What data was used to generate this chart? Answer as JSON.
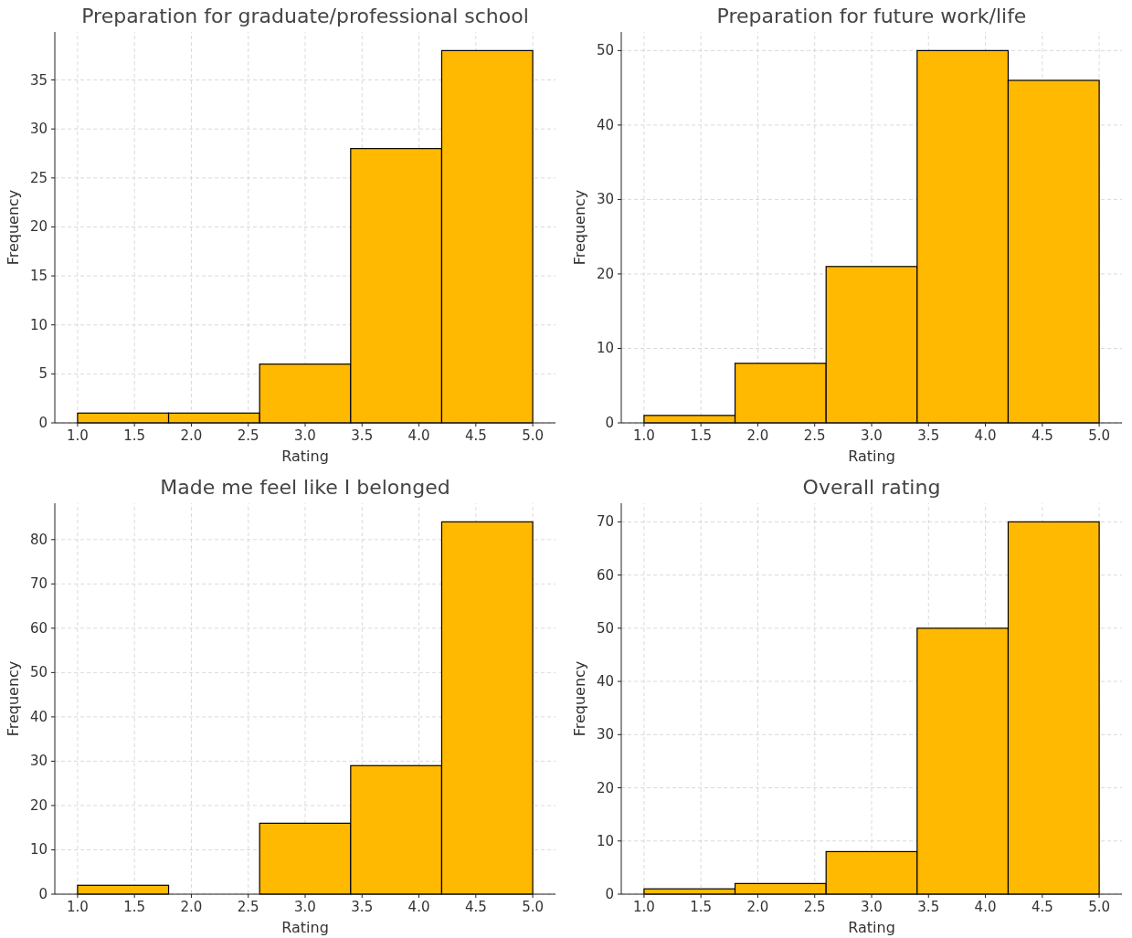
{
  "chart_data": [
    {
      "type": "histogram",
      "title": "Preparation for graduate/professional school",
      "xlabel": "Rating",
      "ylabel": "Frequency",
      "bins": [
        1.0,
        1.8,
        2.6,
        3.4,
        4.2,
        5.0
      ],
      "values": [
        1,
        1,
        6,
        28,
        38
      ],
      "color": "#ffb900",
      "xlim": [
        0.8,
        5.2
      ],
      "xticks": [
        {
          "value": 1,
          "label": "1.0"
        },
        {
          "value": 1.5,
          "label": "1.5"
        },
        {
          "value": 2,
          "label": "2.0"
        },
        {
          "value": 2.5,
          "label": "2.5"
        },
        {
          "value": 3,
          "label": "3.0"
        },
        {
          "value": 3.5,
          "label": "3.5"
        },
        {
          "value": 4,
          "label": "4.0"
        },
        {
          "value": 4.5,
          "label": "4.5"
        },
        {
          "value": 5,
          "label": "5.0"
        }
      ],
      "ylim": [
        0,
        39.9
      ],
      "yticks": [
        0,
        5,
        10,
        15,
        20,
        25,
        30,
        35
      ],
      "grid": true
    },
    {
      "type": "histogram",
      "title": "Preparation for future work/life",
      "xlabel": "Rating",
      "ylabel": "Frequency",
      "bins": [
        1.0,
        1.8,
        2.6,
        3.4,
        4.2,
        5.0
      ],
      "values": [
        1,
        8,
        21,
        50,
        46
      ],
      "color": "#ffb900",
      "xlim": [
        0.8,
        5.2
      ],
      "xticks": [
        {
          "value": 1,
          "label": "1.0"
        },
        {
          "value": 1.5,
          "label": "1.5"
        },
        {
          "value": 2,
          "label": "2.0"
        },
        {
          "value": 2.5,
          "label": "2.5"
        },
        {
          "value": 3,
          "label": "3.0"
        },
        {
          "value": 3.5,
          "label": "3.5"
        },
        {
          "value": 4,
          "label": "4.0"
        },
        {
          "value": 4.5,
          "label": "4.5"
        },
        {
          "value": 5,
          "label": "5.0"
        }
      ],
      "ylim": [
        0,
        52.5
      ],
      "yticks": [
        0,
        10,
        20,
        30,
        40,
        50
      ],
      "grid": true
    },
    {
      "type": "histogram",
      "title": "Made me feel like I belonged",
      "xlabel": "Rating",
      "ylabel": "Frequency",
      "bins": [
        1.0,
        1.8,
        2.6,
        3.4,
        4.2,
        5.0
      ],
      "values": [
        2,
        0,
        16,
        29,
        84
      ],
      "color": "#ffb900",
      "xlim": [
        0.8,
        5.2
      ],
      "xticks": [
        {
          "value": 1,
          "label": "1.0"
        },
        {
          "value": 1.5,
          "label": "1.5"
        },
        {
          "value": 2,
          "label": "2.0"
        },
        {
          "value": 2.5,
          "label": "2.5"
        },
        {
          "value": 3,
          "label": "3.0"
        },
        {
          "value": 3.5,
          "label": "3.5"
        },
        {
          "value": 4,
          "label": "4.0"
        },
        {
          "value": 4.5,
          "label": "4.5"
        },
        {
          "value": 5,
          "label": "5.0"
        }
      ],
      "ylim": [
        0,
        88.2
      ],
      "yticks": [
        0,
        10,
        20,
        30,
        40,
        50,
        60,
        70,
        80
      ],
      "grid": true
    },
    {
      "type": "histogram",
      "title": "Overall rating",
      "xlabel": "Rating",
      "ylabel": "Frequency",
      "bins": [
        1.0,
        1.8,
        2.6,
        3.4,
        4.2,
        5.0
      ],
      "values": [
        1,
        2,
        8,
        50,
        70
      ],
      "color": "#ffb900",
      "xlim": [
        0.8,
        5.2
      ],
      "xticks": [
        {
          "value": 1,
          "label": "1.0"
        },
        {
          "value": 1.5,
          "label": "1.5"
        },
        {
          "value": 2,
          "label": "2.0"
        },
        {
          "value": 2.5,
          "label": "2.5"
        },
        {
          "value": 3,
          "label": "3.0"
        },
        {
          "value": 3.5,
          "label": "3.5"
        },
        {
          "value": 4,
          "label": "4.0"
        },
        {
          "value": 4.5,
          "label": "4.5"
        },
        {
          "value": 5,
          "label": "5.0"
        }
      ],
      "ylim": [
        0,
        73.5
      ],
      "yticks": [
        0,
        10,
        20,
        30,
        40,
        50,
        60,
        70
      ],
      "grid": true
    }
  ]
}
